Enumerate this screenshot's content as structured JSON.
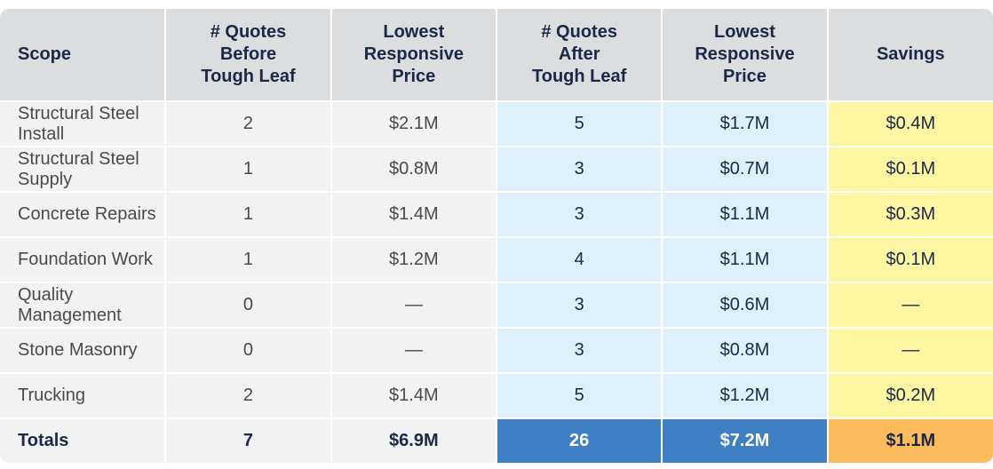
{
  "table": {
    "headers": [
      "Scope",
      "# Quotes\nBefore\nTough Leaf",
      "Lowest\nResponsive\nPrice",
      "# Quotes\nAfter\nTough Leaf",
      "Lowest\nResponsive\nPrice",
      "Savings"
    ],
    "rows": [
      [
        "Structural Steel Install",
        "2",
        "$2.1M",
        "5",
        "$1.7M",
        "$0.4M"
      ],
      [
        "Structural Steel Supply",
        "1",
        "$0.8M",
        "3",
        "$0.7M",
        "$0.1M"
      ],
      [
        "Concrete Repairs",
        "1",
        "$1.4M",
        "3",
        "$1.1M",
        "$0.3M"
      ],
      [
        "Foundation Work",
        "1",
        "$1.2M",
        "4",
        "$1.1M",
        "$0.1M"
      ],
      [
        "Quality Management",
        "0",
        "—",
        "3",
        "$0.6M",
        "—"
      ],
      [
        "Stone Masonry",
        "0",
        "—",
        "3",
        "$0.8M",
        "—"
      ],
      [
        "Trucking",
        "2",
        "$1.4M",
        "5",
        "$1.2M",
        "$0.2M"
      ]
    ],
    "totals": [
      "Totals",
      "7",
      "$6.9M",
      "26",
      "$7.2M",
      "$1.1M"
    ]
  }
}
